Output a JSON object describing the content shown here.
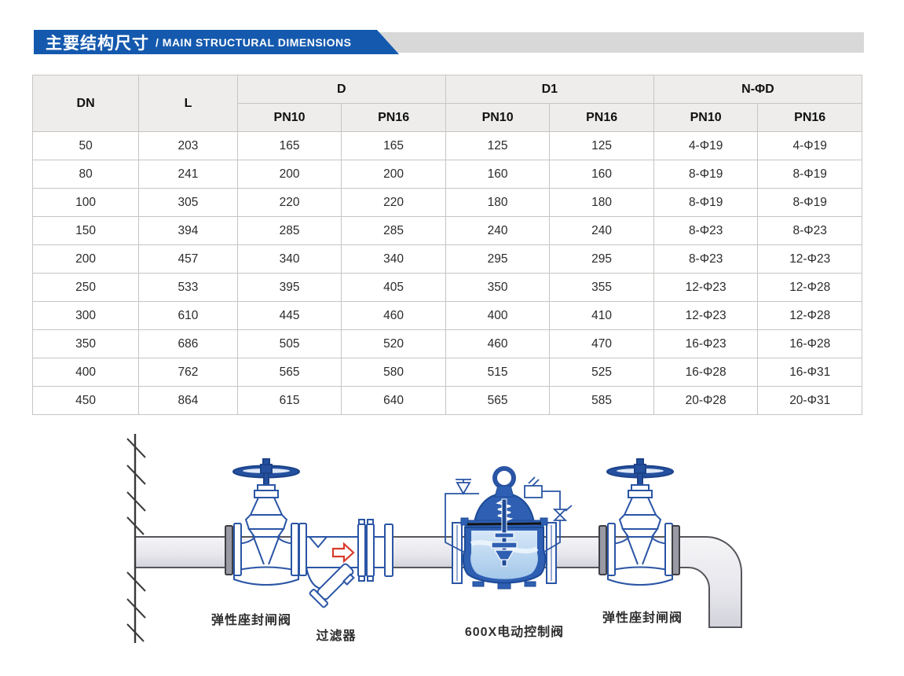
{
  "banner": {
    "title_zh": "主要结构尺寸",
    "title_en": "/ MAIN STRUCTURAL DIMENSIONS",
    "accent_color": "#1459ae",
    "tail_color": "#d8d8d8"
  },
  "table": {
    "col_groups": [
      "DN",
      "L",
      "D",
      "D1",
      "N-ΦD"
    ],
    "sub_headers": [
      "PN10",
      "PN16"
    ],
    "header_bg": "#eeedec",
    "grid_color": "#c7c5c4",
    "rows": [
      [
        "50",
        "203",
        "165",
        "165",
        "125",
        "125",
        "4-Φ19",
        "4-Φ19"
      ],
      [
        "80",
        "241",
        "200",
        "200",
        "160",
        "160",
        "8-Φ19",
        "8-Φ19"
      ],
      [
        "100",
        "305",
        "220",
        "220",
        "180",
        "180",
        "8-Φ19",
        "8-Φ19"
      ],
      [
        "150",
        "394",
        "285",
        "285",
        "240",
        "240",
        "8-Φ23",
        "8-Φ23"
      ],
      [
        "200",
        "457",
        "340",
        "340",
        "295",
        "295",
        "8-Φ23",
        "12-Φ23"
      ],
      [
        "250",
        "533",
        "395",
        "405",
        "350",
        "355",
        "12-Φ23",
        "12-Φ28"
      ],
      [
        "300",
        "610",
        "445",
        "460",
        "400",
        "410",
        "12-Φ23",
        "12-Φ28"
      ],
      [
        "350",
        "686",
        "505",
        "520",
        "460",
        "470",
        "16-Φ23",
        "16-Φ28"
      ],
      [
        "400",
        "762",
        "565",
        "580",
        "515",
        "525",
        "16-Φ28",
        "16-Φ31"
      ],
      [
        "450",
        "864",
        "615",
        "640",
        "565",
        "585",
        "20-Φ28",
        "20-Φ31"
      ]
    ]
  },
  "diagram": {
    "labels": {
      "left_valve": "弹性座封闸阀",
      "strainer": "过滤器",
      "control_valve": "600X电动控制阀",
      "right_valve": "弹性座封闸阀"
    },
    "outline_color": "#2a55a5",
    "flow_arrow_color": "#d93a2c"
  }
}
